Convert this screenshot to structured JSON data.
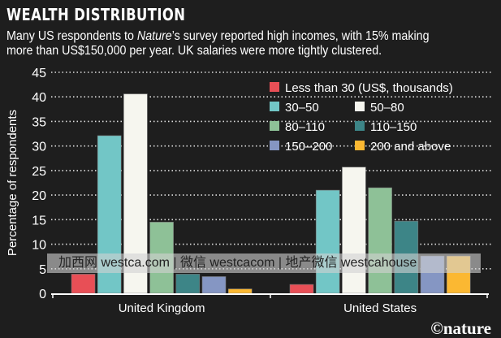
{
  "chart_data": {
    "type": "bar",
    "title": "WEALTH DISTRIBUTION",
    "subtitle": {
      "pre": "Many US respondents to ",
      "italic": "Nature",
      "post": "’s survey reported high incomes, with 15% making",
      "line2": "more than US$150,000 per year. UK salaries were more tightly clustered."
    },
    "xlabel": "",
    "ylabel": "Percentage of respondents",
    "ylim": [
      0,
      45
    ],
    "yticks": [
      "0",
      "5",
      "10",
      "15",
      "20",
      "25",
      "30",
      "35",
      "40",
      "45"
    ],
    "grid": true,
    "legend_placement": "top-right",
    "categories": [
      "United Kingdom",
      "United States"
    ],
    "series": [
      {
        "name": "Less than 30 (US$, thousands)",
        "color": "#e84f56",
        "values": [
          3.9,
          1.8
        ]
      },
      {
        "name": "30–50",
        "color": "#72c6c6",
        "values": [
          32.1,
          21.0
        ]
      },
      {
        "name": "50–80",
        "color": "#f6f6ef",
        "values": [
          40.6,
          25.7
        ]
      },
      {
        "name": "80–110",
        "color": "#8ec197",
        "values": [
          14.5,
          21.5
        ]
      },
      {
        "name": "110–150",
        "color": "#3d8587",
        "values": [
          3.9,
          14.7
        ]
      },
      {
        "name": "150–200",
        "color": "#8596c3",
        "values": [
          3.4,
          7.6
        ]
      },
      {
        "name": "200 and above",
        "color": "#fbb832",
        "values": [
          0.9,
          7.6
        ]
      }
    ]
  },
  "watermark": "加西网 westca.com | 微信 westcacom | 地产微信 westcahouse",
  "credit": "©nature"
}
